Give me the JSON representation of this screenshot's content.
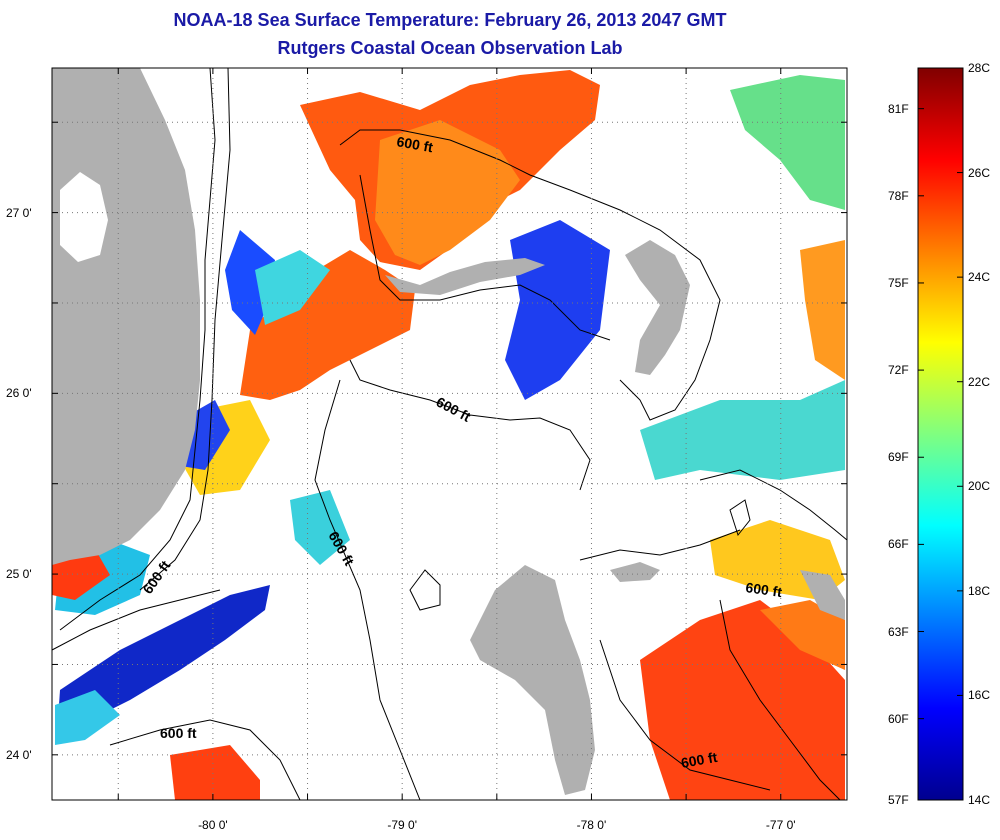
{
  "title": "NOAA-18 Sea Surface Temperature:  February 26, 2013 2047 GMT",
  "subtitle": "Rutgers Coastal Ocean Observation Lab",
  "map": {
    "lon_range": [
      -80.85,
      -76.65
    ],
    "lat_range": [
      23.75,
      27.8
    ],
    "x_tick_labels": [
      {
        "lon": -80,
        "label": "-80 0'"
      },
      {
        "lon": -79,
        "label": "-79 0'"
      },
      {
        "lon": -78,
        "label": "-78 0'"
      },
      {
        "lon": -77,
        "label": "-77 0'"
      }
    ],
    "y_tick_labels": [
      {
        "lat": 27,
        "label": "27 0'"
      },
      {
        "lat": 26,
        "label": "26 0'"
      },
      {
        "lat": 25,
        "label": "25 0'"
      },
      {
        "lat": 24,
        "label": "24 0'"
      }
    ],
    "contour_labels": [
      "600 ft",
      "600 ft",
      "600 ft",
      "600 ft",
      "600 ft",
      "600 ft"
    ],
    "colors": {
      "land": "#b0b0b0",
      "contour": "#000000",
      "grid": "#777777"
    }
  },
  "colorbar": {
    "range_c": [
      14,
      28
    ],
    "c_labels": [
      "28C",
      "26C",
      "24C",
      "22C",
      "20C",
      "18C",
      "16C",
      "14C"
    ],
    "c_values": [
      28,
      26,
      24,
      22,
      20,
      18,
      16,
      14
    ],
    "f_labels": [
      "81F",
      "78F",
      "75F",
      "72F",
      "69F",
      "66F",
      "63F",
      "60F",
      "57F"
    ],
    "f_values": [
      81,
      78,
      75,
      72,
      69,
      66,
      63,
      60,
      57
    ]
  }
}
